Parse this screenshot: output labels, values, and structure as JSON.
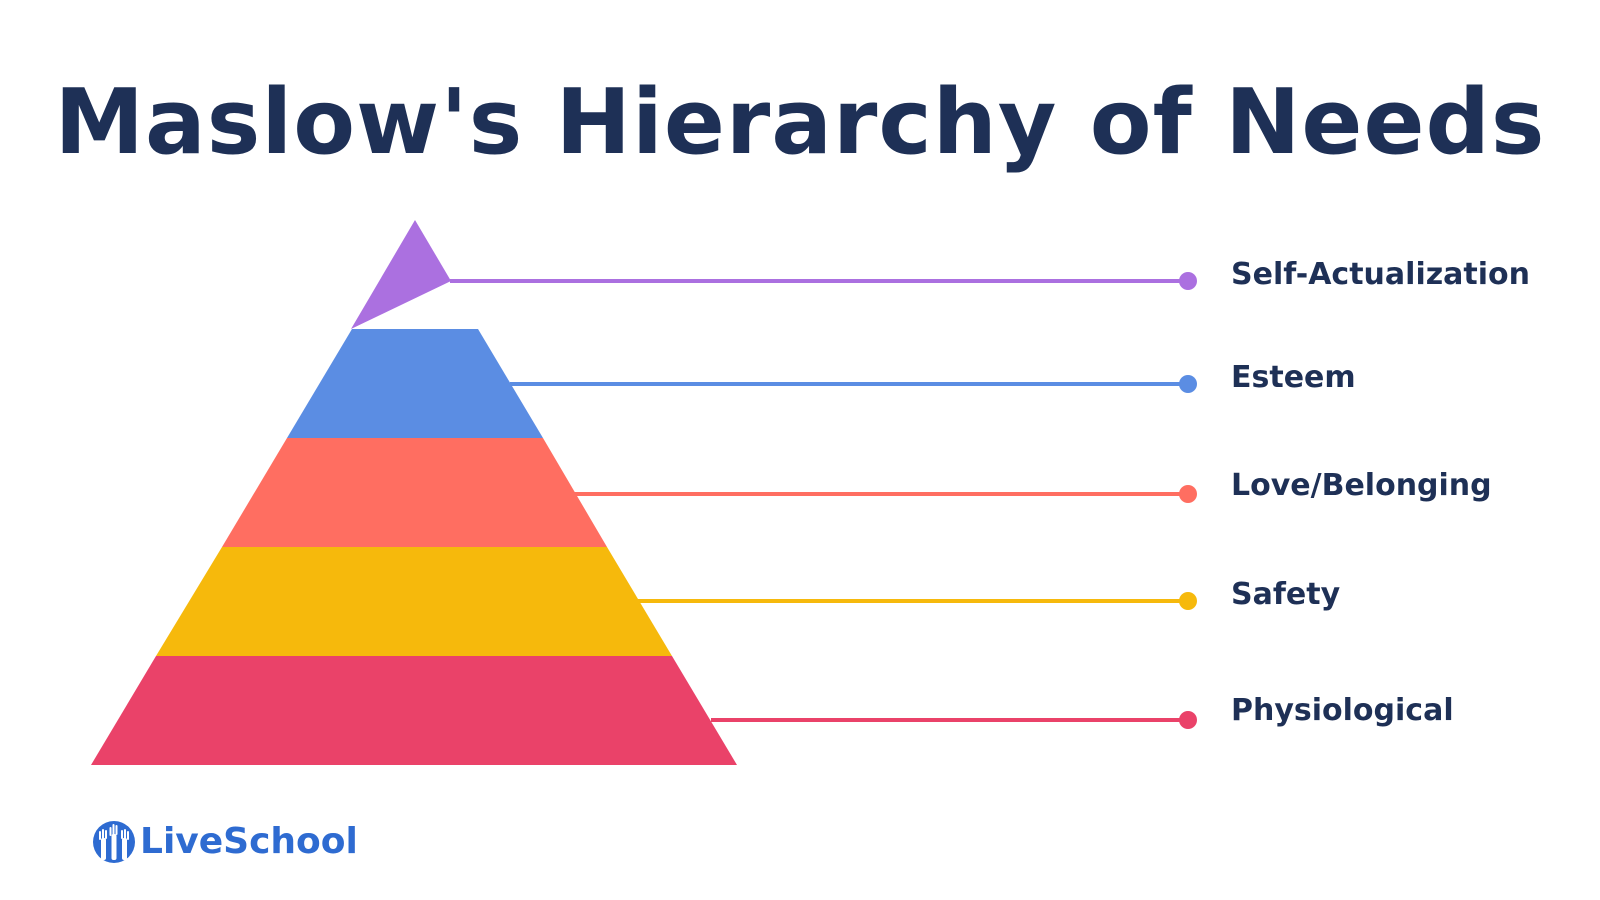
{
  "title": "Maslow's Hierarchy of Needs",
  "levels": [
    {
      "label": "Self-Actualization",
      "color": "#ab70e0"
    },
    {
      "label": "Esteem",
      "color": "#5b8de3"
    },
    {
      "label": "Love/Belonging",
      "color": "#ff6e61"
    },
    {
      "label": "Safety",
      "color": "#f6b90c"
    },
    {
      "label": "Physiological",
      "color": "#ea4269"
    }
  ],
  "logo": {
    "text": "LiveSchool",
    "color": "#2e6bd1",
    "icon": "raised-hands-icon"
  }
}
